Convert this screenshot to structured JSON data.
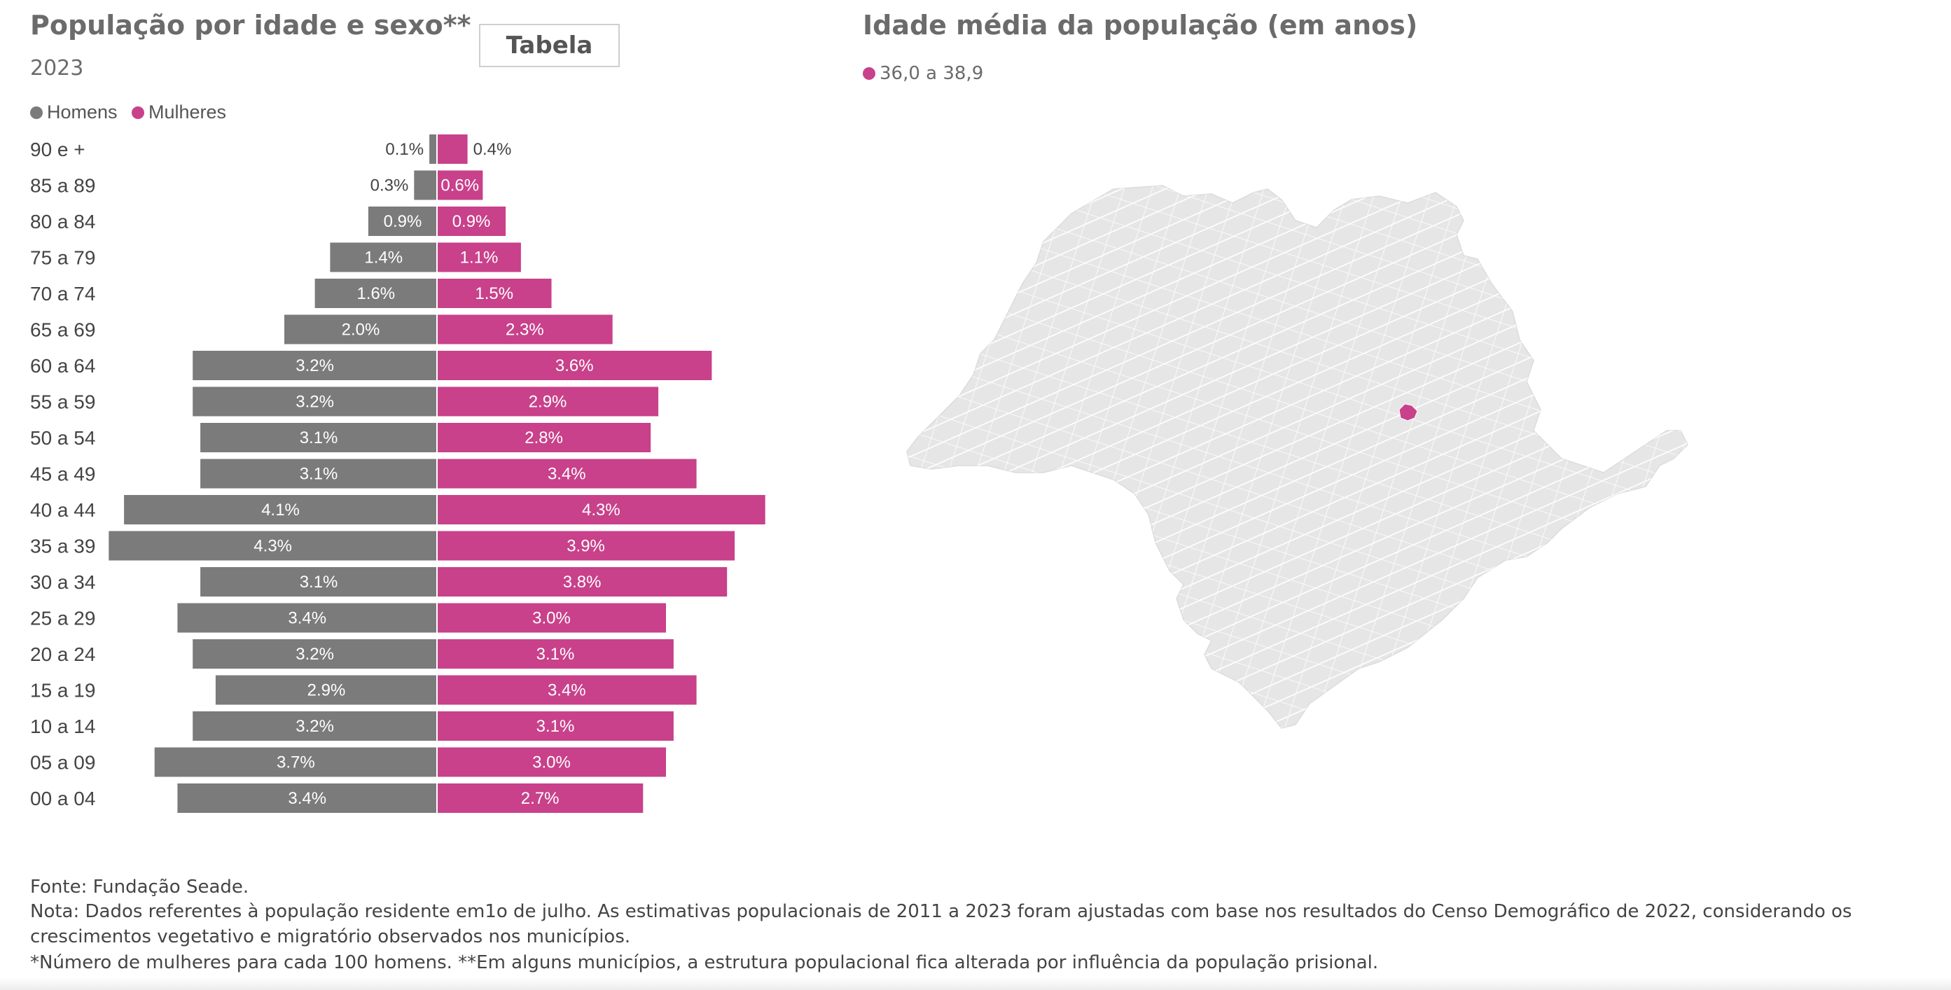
{
  "pyramid": {
    "title": "População por idade e sexo**",
    "year": "2023",
    "table_button": "Tabela",
    "legend": {
      "men": "Homens",
      "women": "Mulheres"
    }
  },
  "colors": {
    "men": "#7b7b7c",
    "women": "#c8418a",
    "map_fill": "#e6e6e6",
    "map_highlight": "#c8418a"
  },
  "chart_data": {
    "type": "bar",
    "categories": [
      "90 e +",
      "85 a 89",
      "80 a 84",
      "75 a 79",
      "70 a 74",
      "65 a 69",
      "60 a 64",
      "55 a 59",
      "50 a 54",
      "45 a 49",
      "40 a 44",
      "35 a 39",
      "30 a 34",
      "25 a 29",
      "20 a 24",
      "15 a 19",
      "10 a 14",
      "05 a 09",
      "00 a 04"
    ],
    "series": [
      {
        "name": "Homens",
        "values": [
          0.1,
          0.3,
          0.9,
          1.4,
          1.6,
          2.0,
          3.2,
          3.2,
          3.1,
          3.1,
          4.1,
          4.3,
          3.1,
          3.4,
          3.2,
          2.9,
          3.2,
          3.7,
          3.4
        ],
        "labels": [
          "0.1%",
          "0.3%",
          "0.9%",
          "1.4%",
          "1.6%",
          "2.0%",
          "3.2%",
          "3.2%",
          "3.1%",
          "3.1%",
          "4.1%",
          "4.3%",
          "3.1%",
          "3.4%",
          "3.2%",
          "2.9%",
          "3.2%",
          "3.7%",
          "3.4%"
        ]
      },
      {
        "name": "Mulheres",
        "values": [
          0.4,
          0.6,
          0.9,
          1.1,
          1.5,
          2.3,
          3.6,
          2.9,
          2.8,
          3.4,
          4.3,
          3.9,
          3.8,
          3.0,
          3.1,
          3.4,
          3.1,
          3.0,
          2.7
        ],
        "labels": [
          "0.4%",
          "0.6%",
          "0.9%",
          "1.1%",
          "1.5%",
          "2.3%",
          "3.6%",
          "2.9%",
          "2.8%",
          "3.4%",
          "4.3%",
          "3.9%",
          "3.8%",
          "3.0%",
          "3.1%",
          "3.4%",
          "3.1%",
          "3.0%",
          "2.7%"
        ]
      }
    ]
  },
  "map": {
    "title": "Idade média da população (em anos)",
    "legend_label": "36,0 a 38,9"
  },
  "footer": {
    "source": "Fonte: Fundação Seade.",
    "note_line1": "Nota: Dados referentes à população residente em1o de julho. As estimativas populacionais de 2011 a 2023 foram ajustadas com base nos resultados do Censo Demográfico de 2022, considerando os",
    "note_line2": "crescimentos vegetativo e migratório observados nos municípios.",
    "note_line3": "*Número de mulheres para cada 100 homens. **Em alguns municípios, a estrutura populacional fica alterada por influência da população prisional."
  }
}
